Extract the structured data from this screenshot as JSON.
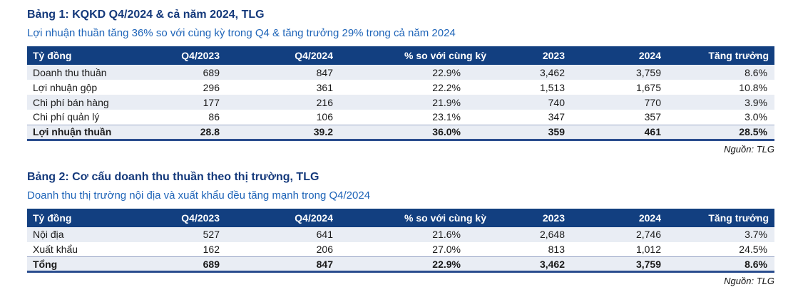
{
  "colors": {
    "title": "#14397B",
    "subtitle": "#1E64B8",
    "table_header_bg": "#123F80",
    "table_header_text": "#FFFFFF",
    "row_shade": "#E9EDF4",
    "total_rule_bottom": "#2A4D8E",
    "total_rule_top": "#9AA7C7"
  },
  "table1": {
    "title": "Bảng 1: KQKD Q4/2024 & cả năm 2024, TLG",
    "subtitle": "Lợi nhuận thuần tăng 36% so với cùng kỳ trong Q4 & tăng trưởng 29% trong cả năm 2024",
    "columns": [
      "Tỷ đồng",
      "Q4/2023",
      "Q4/2024",
      "% so với cùng kỳ",
      "2023",
      "2024",
      "Tăng trưởng"
    ],
    "rows": [
      {
        "label": "Doanh thu thuần",
        "values": [
          "689",
          "847",
          "22.9%",
          "3,462",
          "3,759",
          "8.6%"
        ]
      },
      {
        "label": "Lợi nhuận gộp",
        "values": [
          "296",
          "361",
          "22.2%",
          "1,513",
          "1,675",
          "10.8%"
        ]
      },
      {
        "label": "Chi phí bán hàng",
        "values": [
          "177",
          "216",
          "21.9%",
          "740",
          "770",
          "3.9%"
        ]
      },
      {
        "label": "Chi phí quản lý",
        "values": [
          "86",
          "106",
          "23.1%",
          "347",
          "357",
          "3.0%"
        ]
      },
      {
        "label": "Lợi nhuận thuần",
        "values": [
          "28.8",
          "39.2",
          "36.0%",
          "359",
          "461",
          "28.5%"
        ]
      }
    ],
    "source": "Nguồn: TLG"
  },
  "table2": {
    "title": "Bảng 2: Cơ cấu doanh thu thuần theo thị trường, TLG",
    "subtitle": "Doanh thu thị trường nội địa và xuất khẩu đều tăng mạnh trong Q4/2024",
    "columns": [
      "Tỷ đồng",
      "Q4/2023",
      "Q4/2024",
      "% so với cùng kỳ",
      "2023",
      "2024",
      "Tăng trưởng"
    ],
    "rows": [
      {
        "label": "Nội địa",
        "values": [
          "527",
          "641",
          "21.6%",
          "2,648",
          "2,746",
          "3.7%"
        ]
      },
      {
        "label": "Xuất khẩu",
        "values": [
          "162",
          "206",
          "27.0%",
          "813",
          "1,012",
          "24.5%"
        ]
      },
      {
        "label": "Tổng",
        "values": [
          "689",
          "847",
          "22.9%",
          "3,462",
          "3,759",
          "8.6%"
        ]
      }
    ],
    "source": "Nguồn: TLG"
  }
}
